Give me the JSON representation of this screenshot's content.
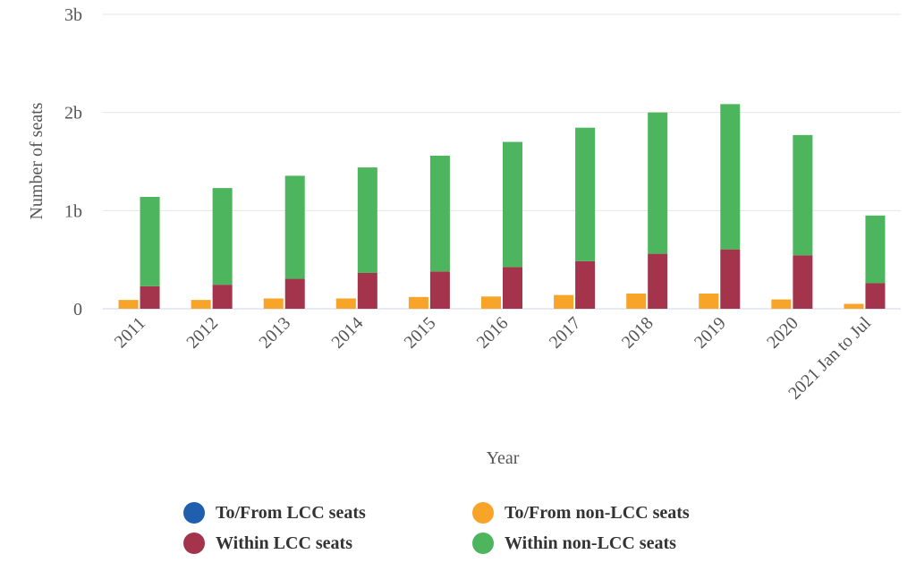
{
  "chart_data": {
    "type": "bar",
    "xlabel": "Year",
    "ylabel": "Number of seats",
    "ylim": [
      0,
      3000000000
    ],
    "yticks": [
      {
        "value": 0,
        "label": "0"
      },
      {
        "value": 1000000000,
        "label": "1b"
      },
      {
        "value": 2000000000,
        "label": "2b"
      },
      {
        "value": 3000000000,
        "label": "3b"
      }
    ],
    "grid": true,
    "legend_position": "bottom",
    "categories": [
      "2011",
      "2012",
      "2013",
      "2014",
      "2015",
      "2016",
      "2017",
      "2018",
      "2019",
      "2020",
      "2021 Jan to Jul"
    ],
    "series": [
      {
        "name": "To/From LCC seats",
        "color": "#1f5fae",
        "stack": "lcc",
        "values": [
          0,
          0,
          0,
          0,
          0,
          0,
          0,
          0,
          0,
          0,
          0
        ]
      },
      {
        "name": "To/From non-LCC seats",
        "color": "#f7a428",
        "stack": "nonlcc",
        "values": [
          90000000,
          90000000,
          105000000,
          105000000,
          120000000,
          125000000,
          140000000,
          155000000,
          155000000,
          95000000,
          50000000
        ]
      },
      {
        "name": "Within LCC seats",
        "color": "#a4344b",
        "stack": "lcc",
        "values": [
          230000000,
          245000000,
          305000000,
          365000000,
          380000000,
          425000000,
          485000000,
          560000000,
          605000000,
          545000000,
          260000000
        ]
      },
      {
        "name": "Within non-LCC seats",
        "color": "#4cb55d",
        "stack": "lcc",
        "values": [
          910000000,
          985000000,
          1050000000,
          1075000000,
          1180000000,
          1275000000,
          1360000000,
          1440000000,
          1480000000,
          1225000000,
          690000000
        ]
      }
    ]
  }
}
